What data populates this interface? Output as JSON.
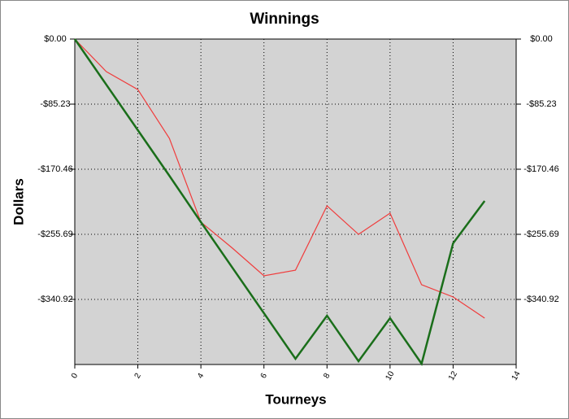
{
  "chart_data": {
    "type": "line",
    "title": "Winnings",
    "x_label": "Tourneys",
    "y_label": "Dollars",
    "x": [
      0,
      1,
      2,
      3,
      4,
      5,
      6,
      7,
      8,
      9,
      10,
      11,
      12,
      13
    ],
    "series": [
      {
        "color": "#f03c3c",
        "values": [
          0,
          -42.6,
          -66.1,
          -130.0,
          -239.7,
          -273.8,
          -310.0,
          -302.6,
          -218.4,
          -255.7,
          -228.0,
          -321.7,
          -337.7,
          -365.4
        ]
      },
      {
        "color": "#1a6e1a",
        "values": [
          0,
          -59.7,
          -119.3,
          -179.0,
          -239.7,
          -299.4,
          -359.0,
          -418.7,
          -362.2,
          -421.9,
          -365.4,
          -425.1,
          -267.4,
          -212.0
        ]
      }
    ],
    "xlim": [
      0,
      14
    ],
    "xticks": [
      0,
      2,
      4,
      6,
      8,
      10,
      12,
      14
    ],
    "ylim": [
      -426.15,
      0
    ],
    "yticks": [
      {
        "value": 0,
        "label": "$0.00"
      },
      {
        "value": -85.23,
        "label": "-$85.23"
      },
      {
        "value": -170.46,
        "label": "-$170.46"
      },
      {
        "value": -255.69,
        "label": "-$255.69"
      },
      {
        "value": -340.92,
        "label": "-$340.92"
      }
    ],
    "grid": true,
    "background": "#d3d3d3"
  }
}
